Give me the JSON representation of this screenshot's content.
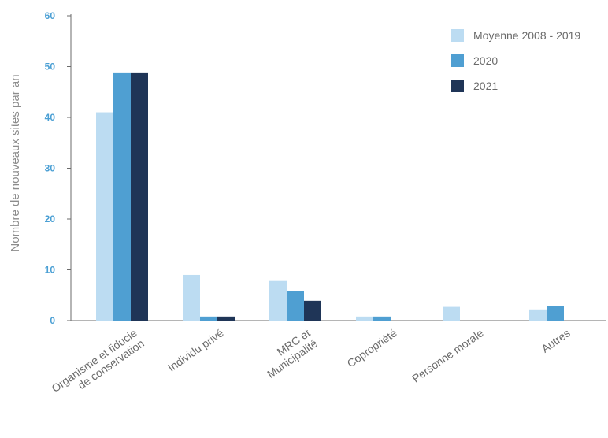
{
  "chart_data": {
    "type": "bar",
    "ylabel": "Nombre de nouveaux sites par an",
    "xlabel": "",
    "ylim": [
      0,
      60
    ],
    "yticks": [
      0,
      10,
      20,
      30,
      40,
      50,
      60
    ],
    "categories": [
      [
        "Organisme et fiducie",
        "de conservation"
      ],
      [
        "Individu privé"
      ],
      [
        "MRC et",
        "Municipalité"
      ],
      [
        "Copropriété"
      ],
      [
        "Personne morale"
      ],
      [
        "Autres"
      ]
    ],
    "series": [
      {
        "name": "Moyenne 2008 - 2019",
        "color": "#bcdcf2",
        "values": [
          41,
          9,
          7.8,
          0.8,
          2.7,
          2.2
        ]
      },
      {
        "name": "2020",
        "color": "#4f9fd2",
        "values": [
          48.7,
          0.8,
          5.8,
          0.8,
          0,
          2.8
        ]
      },
      {
        "name": "2021",
        "color": "#1f3557",
        "values": [
          48.7,
          0.8,
          3.9,
          0,
          0,
          0
        ]
      }
    ],
    "legend_position": "top-right",
    "grid": false
  }
}
